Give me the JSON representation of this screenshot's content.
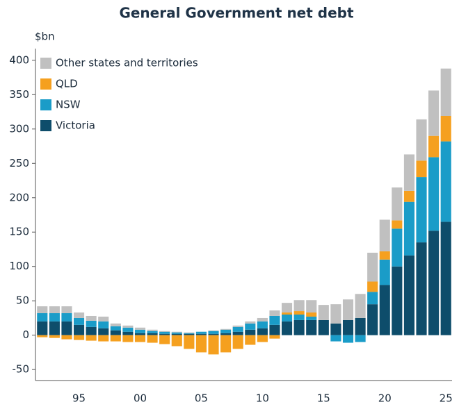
{
  "chart_data": {
    "type": "bar",
    "stacked": true,
    "title": "General Government net debt",
    "y_label": "$bn",
    "categories": [
      null,
      null,
      null,
      "95",
      null,
      null,
      null,
      null,
      "00",
      null,
      null,
      null,
      null,
      "05",
      null,
      null,
      null,
      null,
      "10",
      null,
      null,
      null,
      null,
      "15",
      null,
      null,
      null,
      null,
      "20",
      null,
      null,
      null,
      null,
      "25"
    ],
    "series": [
      {
        "name": "Victoria",
        "color": "#0e4d6b",
        "values": [
          20,
          20,
          20,
          15,
          12,
          10,
          7,
          5,
          3,
          3,
          2,
          2,
          2,
          2,
          2,
          3,
          5,
          8,
          10,
          15,
          20,
          22,
          22,
          22,
          17,
          22,
          25,
          45,
          73,
          100,
          116,
          135,
          152,
          165
        ]
      },
      {
        "name": "NSW",
        "color": "#1a9cc8",
        "values": [
          12,
          12,
          12,
          10,
          9,
          10,
          6,
          6,
          5,
          3,
          3,
          2,
          1,
          3,
          4,
          5,
          7,
          9,
          10,
          13,
          10,
          8,
          5,
          0,
          -9,
          -11,
          -10,
          18,
          37,
          55,
          78,
          95,
          107,
          117
        ]
      },
      {
        "name": "QLD",
        "color": "#f5a01f",
        "values": [
          -3,
          -4,
          -6,
          -7,
          -8,
          -9,
          -9,
          -10,
          -10,
          -11,
          -13,
          -16,
          -20,
          -25,
          -28,
          -25,
          -20,
          -14,
          -10,
          -5,
          3,
          5,
          6,
          0,
          0,
          0,
          0,
          15,
          12,
          12,
          16,
          24,
          31,
          37
        ]
      },
      {
        "name": "Other states and territories",
        "color": "#c0c0c0",
        "values": [
          10,
          10,
          10,
          8,
          7,
          7,
          4,
          3,
          3,
          2,
          1,
          1,
          1,
          0,
          1,
          1,
          2,
          3,
          5,
          8,
          14,
          16,
          18,
          22,
          28,
          30,
          35,
          42,
          46,
          48,
          53,
          60,
          66,
          69
        ]
      }
    ],
    "ylim": [
      -66,
      417
    ],
    "yticks": [
      -50,
      0,
      50,
      100,
      150,
      200,
      250,
      300,
      350,
      400
    ],
    "legend": "top-left"
  }
}
